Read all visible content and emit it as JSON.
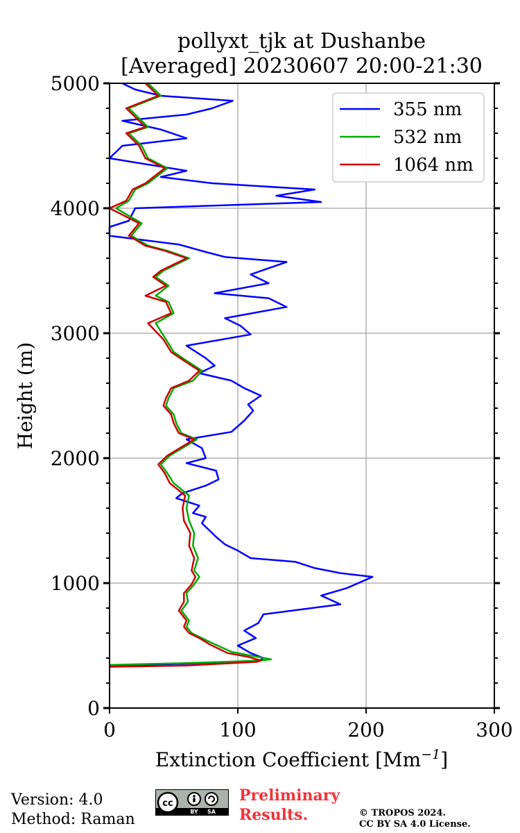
{
  "title_line1": "pollyxt_tjk at Dushanbe",
  "title_line2": "[Averaged] 20230607 20:00-21:30",
  "footer": {
    "version": "Version: 4.0",
    "method": "Method: Raman",
    "preliminary_line1": "Preliminary",
    "preliminary_line2": "Results.",
    "copyright_line1": "© TROPOS 2024.",
    "copyright_line2": "CC BY SA 4.0 License.",
    "license_badge": {
      "cc": "cc",
      "by": "BY",
      "sa": "SA"
    }
  },
  "chart_data": {
    "type": "line",
    "title": "pollyxt_tjk at Dushanbe [Averaged] 20230607 20:00-21:30",
    "xlabel": "Extinction Coefficient [Mm",
    "xlabel_sup": "−1",
    "xlabel_end": "]",
    "ylabel": "Height (m)",
    "xlim": [
      0,
      300
    ],
    "ylim": [
      0,
      5000
    ],
    "xticks": [
      0,
      100,
      200,
      300
    ],
    "yticks": [
      0,
      1000,
      2000,
      3000,
      4000,
      5000
    ],
    "grid": true,
    "legend_position": "top-right",
    "series": [
      {
        "name": "355 nm",
        "color": "#0000ff",
        "points": [
          [
            0,
            340
          ],
          [
            60,
            355
          ],
          [
            117,
            380
          ],
          [
            120,
            400
          ],
          [
            110,
            440
          ],
          [
            100,
            500
          ],
          [
            114,
            560
          ],
          [
            105,
            620
          ],
          [
            116,
            680
          ],
          [
            120,
            750
          ],
          [
            180,
            830
          ],
          [
            165,
            900
          ],
          [
            185,
            960
          ],
          [
            205,
            1050
          ],
          [
            180,
            1080
          ],
          [
            160,
            1120
          ],
          [
            145,
            1170
          ],
          [
            110,
            1200
          ],
          [
            100,
            1260
          ],
          [
            90,
            1310
          ],
          [
            83,
            1370
          ],
          [
            78,
            1420
          ],
          [
            72,
            1480
          ],
          [
            75,
            1530
          ],
          [
            65,
            1560
          ],
          [
            70,
            1620
          ],
          [
            52,
            1680
          ],
          [
            57,
            1720
          ],
          [
            75,
            1780
          ],
          [
            85,
            1830
          ],
          [
            83,
            1900
          ],
          [
            60,
            1960
          ],
          [
            75,
            2000
          ],
          [
            72,
            2080
          ],
          [
            60,
            2150
          ],
          [
            95,
            2210
          ],
          [
            105,
            2300
          ],
          [
            112,
            2380
          ],
          [
            108,
            2430
          ],
          [
            118,
            2500
          ],
          [
            105,
            2560
          ],
          [
            95,
            2620
          ],
          [
            70,
            2680
          ],
          [
            82,
            2740
          ],
          [
            75,
            2800
          ],
          [
            60,
            2900
          ],
          [
            110,
            2990
          ],
          [
            102,
            3060
          ],
          [
            90,
            3120
          ],
          [
            138,
            3210
          ],
          [
            124,
            3280
          ],
          [
            82,
            3320
          ],
          [
            124,
            3400
          ],
          [
            110,
            3470
          ],
          [
            138,
            3570
          ],
          [
            90,
            3610
          ],
          [
            75,
            3650
          ],
          [
            54,
            3710
          ],
          [
            0,
            3780
          ],
          [
            0,
            3850
          ],
          [
            15,
            3900
          ],
          [
            20,
            4000
          ],
          [
            165,
            4050
          ],
          [
            130,
            4100
          ],
          [
            160,
            4150
          ],
          [
            80,
            4200
          ],
          [
            40,
            4250
          ],
          [
            60,
            4300
          ],
          [
            0,
            4400
          ],
          [
            10,
            4500
          ],
          [
            60,
            4560
          ],
          [
            40,
            4630
          ],
          [
            10,
            4700
          ],
          [
            60,
            4750
          ],
          [
            80,
            4800
          ],
          [
            96,
            4860
          ],
          [
            40,
            4900
          ],
          [
            20,
            4950
          ],
          [
            10,
            5000
          ]
        ]
      },
      {
        "name": "532 nm",
        "color": "#00aa00",
        "points": [
          [
            0,
            345
          ],
          [
            60,
            360
          ],
          [
            118,
            380
          ],
          [
            126,
            390
          ],
          [
            110,
            420
          ],
          [
            95,
            450
          ],
          [
            80,
            520
          ],
          [
            72,
            560
          ],
          [
            64,
            600
          ],
          [
            60,
            650
          ],
          [
            62,
            700
          ],
          [
            56,
            780
          ],
          [
            61,
            850
          ],
          [
            60,
            920
          ],
          [
            66,
            990
          ],
          [
            70,
            1050
          ],
          [
            66,
            1100
          ],
          [
            69,
            1200
          ],
          [
            65,
            1300
          ],
          [
            66,
            1400
          ],
          [
            62,
            1500
          ],
          [
            60,
            1600
          ],
          [
            62,
            1700
          ],
          [
            50,
            1800
          ],
          [
            45,
            1880
          ],
          [
            40,
            1950
          ],
          [
            47,
            2020
          ],
          [
            68,
            2150
          ],
          [
            56,
            2200
          ],
          [
            52,
            2280
          ],
          [
            50,
            2350
          ],
          [
            44,
            2420
          ],
          [
            46,
            2480
          ],
          [
            50,
            2560
          ],
          [
            65,
            2620
          ],
          [
            72,
            2700
          ],
          [
            60,
            2780
          ],
          [
            50,
            2850
          ],
          [
            44,
            2950
          ],
          [
            36,
            3080
          ],
          [
            50,
            3160
          ],
          [
            46,
            3250
          ],
          [
            36,
            3300
          ],
          [
            46,
            3380
          ],
          [
            36,
            3450
          ],
          [
            42,
            3500
          ],
          [
            62,
            3600
          ],
          [
            45,
            3660
          ],
          [
            30,
            3700
          ],
          [
            17,
            3780
          ],
          [
            25,
            3880
          ],
          [
            5,
            4000
          ],
          [
            15,
            4060
          ],
          [
            20,
            4150
          ],
          [
            30,
            4200
          ],
          [
            45,
            4320
          ],
          [
            30,
            4400
          ],
          [
            25,
            4500
          ],
          [
            15,
            4600
          ],
          [
            30,
            4650
          ],
          [
            25,
            4700
          ],
          [
            15,
            4800
          ],
          [
            40,
            4900
          ],
          [
            35,
            4950
          ],
          [
            30,
            5000
          ]
        ]
      },
      {
        "name": "1064 nm",
        "color": "#cc0000",
        "points": [
          [
            0,
            330
          ],
          [
            60,
            340
          ],
          [
            115,
            370
          ],
          [
            118,
            380
          ],
          [
            108,
            410
          ],
          [
            92,
            440
          ],
          [
            78,
            510
          ],
          [
            70,
            560
          ],
          [
            62,
            600
          ],
          [
            58,
            650
          ],
          [
            60,
            700
          ],
          [
            54,
            780
          ],
          [
            58,
            850
          ],
          [
            58,
            920
          ],
          [
            64,
            990
          ],
          [
            67,
            1050
          ],
          [
            64,
            1100
          ],
          [
            66,
            1200
          ],
          [
            62,
            1300
          ],
          [
            63,
            1400
          ],
          [
            58,
            1500
          ],
          [
            57,
            1600
          ],
          [
            59,
            1700
          ],
          [
            47,
            1800
          ],
          [
            43,
            1880
          ],
          [
            38,
            1950
          ],
          [
            45,
            2020
          ],
          [
            66,
            2150
          ],
          [
            54,
            2200
          ],
          [
            50,
            2280
          ],
          [
            48,
            2350
          ],
          [
            42,
            2420
          ],
          [
            44,
            2480
          ],
          [
            48,
            2560
          ],
          [
            62,
            2620
          ],
          [
            70,
            2700
          ],
          [
            58,
            2780
          ],
          [
            48,
            2850
          ],
          [
            42,
            2950
          ],
          [
            30,
            3080
          ],
          [
            48,
            3160
          ],
          [
            44,
            3250
          ],
          [
            28,
            3300
          ],
          [
            44,
            3380
          ],
          [
            34,
            3450
          ],
          [
            40,
            3500
          ],
          [
            60,
            3600
          ],
          [
            43,
            3660
          ],
          [
            28,
            3700
          ],
          [
            15,
            3780
          ],
          [
            23,
            3880
          ],
          [
            0,
            4000
          ],
          [
            13,
            4060
          ],
          [
            18,
            4150
          ],
          [
            28,
            4200
          ],
          [
            43,
            4320
          ],
          [
            28,
            4400
          ],
          [
            23,
            4500
          ],
          [
            13,
            4600
          ],
          [
            28,
            4650
          ],
          [
            23,
            4700
          ],
          [
            13,
            4800
          ],
          [
            38,
            4900
          ],
          [
            33,
            4950
          ],
          [
            28,
            5000
          ]
        ]
      }
    ]
  }
}
